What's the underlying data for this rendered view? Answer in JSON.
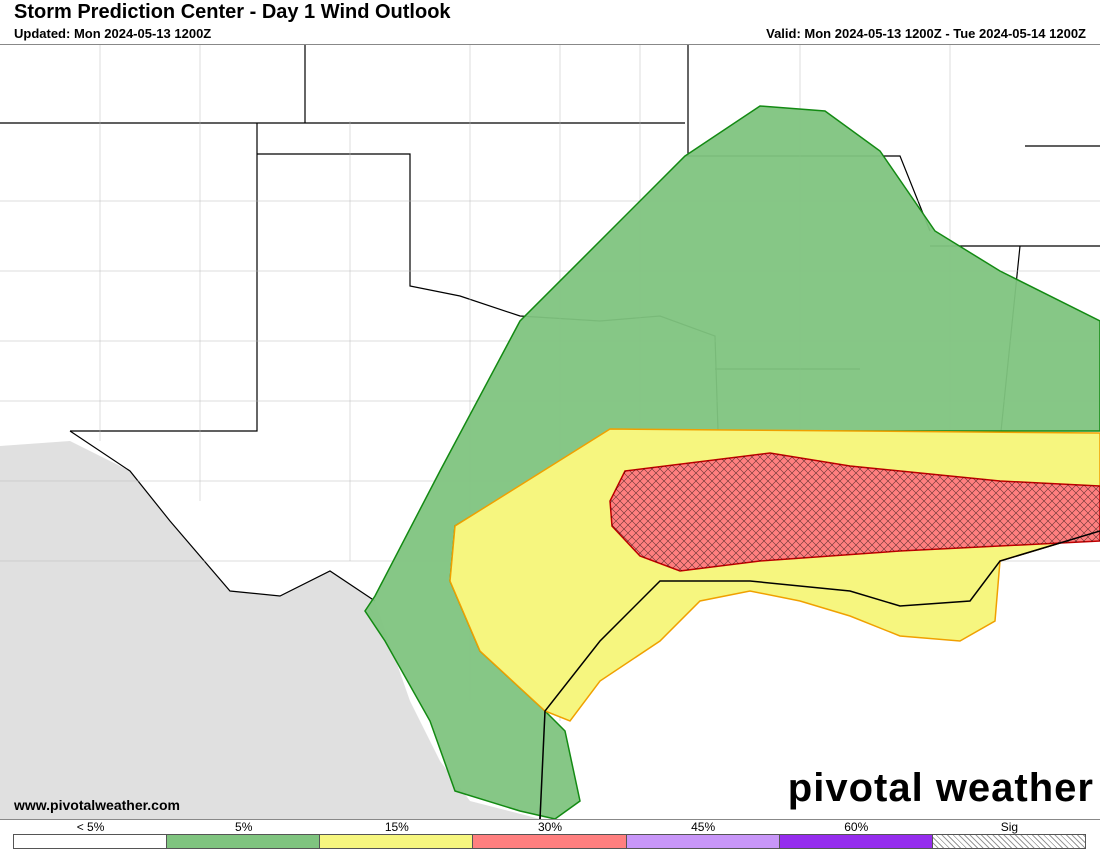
{
  "header": {
    "title": "Storm Prediction Center - Day 1 Wind Outlook",
    "updated": "Updated: Mon 2024-05-13 1200Z",
    "valid": "Valid: Mon 2024-05-13 1200Z - Tue 2024-05-14 1200Z"
  },
  "footer": {
    "website": "www.pivotalweather.com",
    "logo": "pivotal weather"
  },
  "legend": [
    {
      "label": "< 5%",
      "color": "#ffffff"
    },
    {
      "label": "5%",
      "color": "#7fc47f"
    },
    {
      "label": "15%",
      "color": "#f6f67f"
    },
    {
      "label": "30%",
      "color": "#ff7f7f"
    },
    {
      "label": "45%",
      "color": "#c896f8"
    },
    {
      "label": "60%",
      "color": "#952ded"
    },
    {
      "label": "Sig",
      "color": "hatched"
    }
  ],
  "map": {
    "risk_areas": [
      "5%",
      "15%",
      "30%",
      "Sig"
    ]
  }
}
